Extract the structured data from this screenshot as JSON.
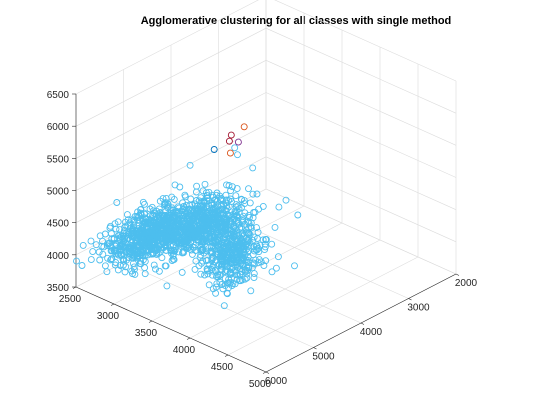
{
  "chart_data": {
    "type": "scatter",
    "title": "Agglomerative clustering for all classes with single method",
    "xlabel": "",
    "ylabel": "",
    "zlabel": "",
    "grid": true,
    "view": "3d",
    "xlim": [
      2500,
      5000
    ],
    "ylim": [
      2000,
      6000
    ],
    "zlim": [
      3500,
      6500
    ],
    "x_ticks": [
      2500,
      3000,
      3500,
      4000,
      4500,
      5000
    ],
    "y_ticks": [
      2000,
      3000,
      4000,
      5000,
      6000
    ],
    "z_ticks": [
      3500,
      4000,
      4500,
      5000,
      5500,
      6000,
      6500
    ],
    "series": [
      {
        "color": "#4DBEEE",
        "clusters": [
          {
            "center": [
              2700,
              4800,
              3950
            ],
            "spread": [
              130,
              420,
              160
            ],
            "count": 650
          },
          {
            "center": [
              2900,
              4100,
              3950
            ],
            "spread": [
              120,
              380,
              160
            ],
            "count": 550
          },
          {
            "center": [
              3900,
              5000,
              4350
            ],
            "spread": [
              140,
              250,
              200
            ],
            "count": 360
          },
          {
            "center": [
              4000,
              5100,
              4900
            ],
            "spread": [
              150,
              250,
              230
            ],
            "count": 90
          }
        ],
        "points": [
          [
            2700,
            5500,
            4400
          ],
          [
            2600,
            5300,
            4600
          ],
          [
            3600,
            3500,
            3600
          ],
          [
            3700,
            3700,
            3550
          ],
          [
            3750,
            3400,
            3500
          ],
          [
            3300,
            3300,
            3560
          ],
          [
            4200,
            5800,
            5300
          ],
          [
            3500,
            4200,
            5400
          ],
          [
            3650,
            4500,
            5700
          ],
          [
            3700,
            4200,
            5300
          ],
          [
            4700,
            5400,
            5100
          ],
          [
            4100,
            5700,
            5500
          ]
        ]
      },
      {
        "color": "#7E2F8E",
        "points": [
          [
            3950,
            4900,
            6100
          ]
        ]
      },
      {
        "color": "#D95319",
        "points": [
          [
            4000,
            5150,
            6050
          ],
          [
            3650,
            4300,
            5950
          ]
        ]
      },
      {
        "color": "#0072BD",
        "points": [
          [
            4100,
            5650,
            6350
          ]
        ]
      },
      {
        "color": "#A2142F",
        "points": [
          [
            4050,
            5250,
            6300
          ],
          [
            4200,
            5450,
            6550
          ]
        ]
      }
    ]
  }
}
